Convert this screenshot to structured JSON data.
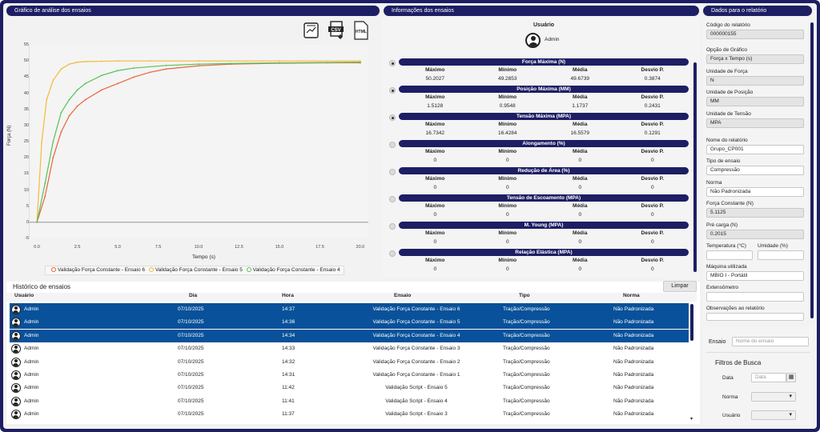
{
  "panels": {
    "chart": "Gráfico de análise dos ensaios",
    "info": "Informações dos ensaios",
    "report": "Dados para o relatório"
  },
  "export_icons": [
    "chart-export-icon",
    "csv-export-icon",
    "html-export-icon"
  ],
  "export_labels": {
    "csv": "CSV",
    "html": "HTML"
  },
  "chart_data": {
    "type": "line",
    "title": "",
    "xlabel": "Tempo (s)",
    "ylabel": "Força (N)",
    "xlim": [
      -0.5,
      20.5
    ],
    "ylim": [
      -5,
      55
    ],
    "x_ticks": [
      "0.0",
      "2.5",
      "5.0",
      "7.5",
      "10.0",
      "12.5",
      "15.0",
      "17.5",
      "20.0"
    ],
    "y_ticks": [
      "55",
      "50",
      "45",
      "40",
      "35",
      "30",
      "25",
      "20",
      "15",
      "10",
      "5",
      "0",
      "-5"
    ],
    "series": [
      {
        "name": "Validação Força Constante - Ensaio 6",
        "color": "#e8643c",
        "x": [
          0,
          0.5,
          1,
          1.5,
          2,
          2.5,
          3,
          4,
          5,
          6,
          7,
          8,
          10,
          12,
          15,
          18,
          20
        ],
        "y": [
          0,
          8,
          20,
          28,
          33,
          36,
          38,
          41,
          43,
          45,
          46.5,
          47.5,
          48.5,
          49,
          49.3,
          49.4,
          49.4
        ]
      },
      {
        "name": "Validação Força Constante - Ensaio 5",
        "color": "#f5b93a",
        "x": [
          0,
          0.3,
          0.6,
          1,
          1.5,
          2,
          2.5,
          3,
          4,
          5,
          7,
          10,
          15,
          20
        ],
        "y": [
          0,
          25,
          38,
          44,
          47.5,
          49,
          49.6,
          49.8,
          49.9,
          50,
          50,
          50,
          50,
          50
        ]
      },
      {
        "name": "Validação Força Constante - Ensaio 4",
        "color": "#56c156",
        "x": [
          0,
          0.5,
          1,
          1.5,
          2,
          2.5,
          3,
          4,
          5,
          6,
          8,
          10,
          12,
          15,
          20
        ],
        "y": [
          0,
          12,
          25,
          34,
          38,
          41,
          43,
          45.5,
          47,
          47.8,
          48.6,
          49,
          49.2,
          49.4,
          49.6
        ]
      }
    ],
    "grid": false,
    "legend": "bottom"
  },
  "legend": [
    "Validação Força Constante - Ensaio 6",
    "Validação Força Constante - Ensaio 5",
    "Validação Força Constante - Ensaio 4"
  ],
  "info": {
    "user_label": "Usuário",
    "user_name": "Admin",
    "col": [
      "Máximo",
      "Mínimo",
      "Média",
      "Desvio P."
    ],
    "props": [
      {
        "title": "Força Máxima (N)",
        "vals": [
          "50.2027",
          "49.2853",
          "49.6739",
          "0.3874"
        ],
        "on": true
      },
      {
        "title": "Posição Máxima (MM)",
        "vals": [
          "1.5128",
          "0.9548",
          "1.1737",
          "0.2431"
        ],
        "on": true
      },
      {
        "title": "Tensão Máxima (MPA)",
        "vals": [
          "16.7342",
          "16.4284",
          "16.5579",
          "0.1291"
        ],
        "on": true
      },
      {
        "title": "Alongamento (%)",
        "vals": [
          "0",
          "0",
          "0",
          "0"
        ],
        "on": false
      },
      {
        "title": "Redução de Área (%)",
        "vals": [
          "0",
          "0",
          "0",
          "0"
        ],
        "on": false
      },
      {
        "title": "Tensão de Escoamento (MPA)",
        "vals": [
          "0",
          "0",
          "0",
          "0"
        ],
        "on": false
      },
      {
        "title": "M. Young (MPA)",
        "vals": [
          "0",
          "0",
          "0",
          "0"
        ],
        "on": false
      },
      {
        "title": "Relação Elástica (MPA)",
        "vals": [
          "0",
          "0",
          "0",
          "0"
        ],
        "on": false
      }
    ]
  },
  "history": {
    "title": "Histórico de ensaios",
    "clear": "Limpar",
    "cols": [
      "Usuário",
      "Dia",
      "Hora",
      "Ensaio",
      "Tipo",
      "Norma"
    ],
    "rows": [
      [
        "Admin",
        "07/10/2025",
        "14:37",
        "Validação Força Constante - Ensaio 6",
        "Tração/Compressão",
        "Não Padronizada",
        true
      ],
      [
        "Admin",
        "07/10/2025",
        "14:36",
        "Validação Força Constante - Ensaio 5",
        "Tração/Compressão",
        "Não Padronizada",
        true
      ],
      [
        "Admin",
        "07/10/2025",
        "14:34",
        "Validação Força Constante - Ensaio 4",
        "Tração/Compressão",
        "Não Padronizada",
        true
      ],
      [
        "Admin",
        "07/10/2025",
        "14:33",
        "Validação Força Constante - Ensaio 3",
        "Tração/Compressão",
        "Não Padronizada",
        false
      ],
      [
        "Admin",
        "07/10/2025",
        "14:32",
        "Validação Força Constante - Ensaio 2",
        "Tração/Compressão",
        "Não Padronizada",
        false
      ],
      [
        "Admin",
        "07/10/2025",
        "14:31",
        "Validação Força Constante - Ensaio 1",
        "Tração/Compressão",
        "Não Padronizada",
        false
      ],
      [
        "Admin",
        "07/10/2025",
        "11:42",
        "Validação Script - Ensaio 5",
        "Tração/Compressão",
        "Não Padronizada",
        false
      ],
      [
        "Admin",
        "07/10/2025",
        "11:41",
        "Validação Script - Ensaio 4",
        "Tração/Compressão",
        "Não Padronizada",
        false
      ],
      [
        "Admin",
        "07/10/2025",
        "11:37",
        "Validação Script - Ensaio 3",
        "Tração/Compressão",
        "Não Padronizada",
        false
      ]
    ]
  },
  "report": {
    "codigo_label": "Código do relatório",
    "codigo": "000000155",
    "opcao_label": "Opção de Gráfico",
    "opcao": "Força x Tempo (s)",
    "uforca_label": "Unidade de Força",
    "uforca": "N",
    "upos_label": "Unidade de Posição",
    "upos": "MM",
    "utensao_label": "Unidade de Tensão",
    "utensao": "MPA",
    "nome_label": "Nome do relatório",
    "nome": "Grupo_CP001",
    "tipo_label": "Tipo de ensaio",
    "tipo": "Compressão",
    "norma_label": "Norma",
    "norma": "Não Padronizada",
    "fconst_label": "Força Constante (N)",
    "fconst": "5.1125",
    "precarga_label": "Pré carga (N)",
    "precarga": "0.2015",
    "temp_label": "Temperatura (°C)",
    "umid_label": "Umidade (%)",
    "maquina_label": "Máquina utilizada",
    "maquina": "MBIO I - Portátil",
    "extens_label": "Extensômetro",
    "obs_label": "Observações ao relatório"
  },
  "filters": {
    "ensaio_label": "Ensaio",
    "ensaio_placeholder": "Nome do ensaio",
    "title": "Filtros de Busca",
    "data_label": "Data",
    "data_placeholder": "Data",
    "norma_label": "Norma",
    "usuario_label": "Usuário"
  }
}
